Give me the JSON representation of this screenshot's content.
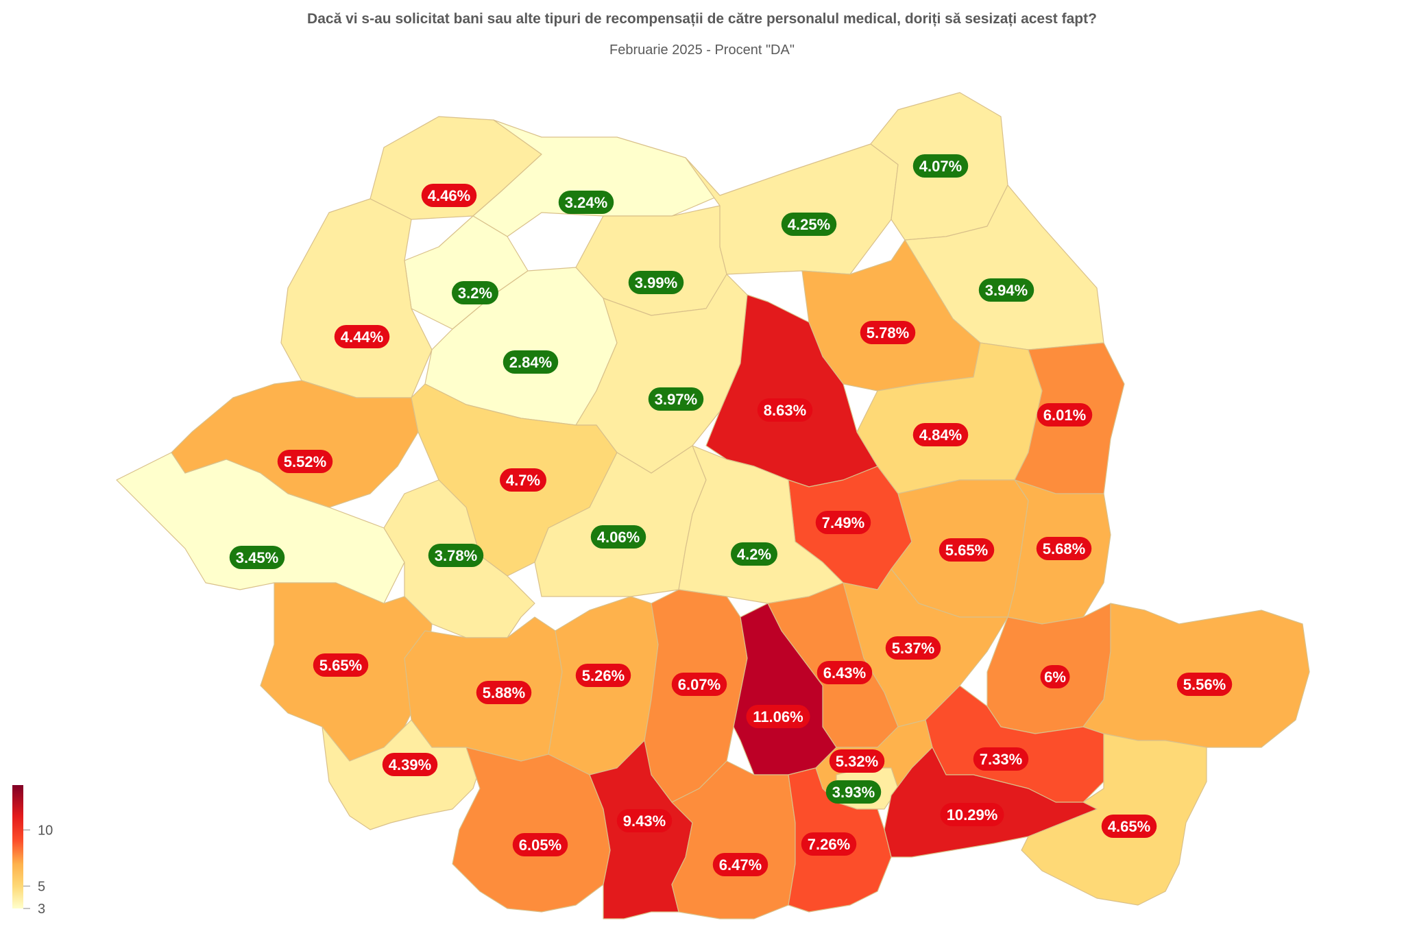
{
  "title": "Dacă vi s-au solicitat bani sau alte tipuri de recompensații de către personalul medical, doriți să sesizați acest fapt?",
  "subtitle": "Februarie 2025 - Procent \"DA\"",
  "colors": {
    "low_label_bg": "#1a7a0e",
    "high_label_bg": "#e50914",
    "scale": [
      "#ffffcc",
      "#ffeda0",
      "#fed976",
      "#feb24c",
      "#fd8d3c",
      "#fc4e2a",
      "#e31a1c",
      "#bd0026",
      "#800026"
    ]
  },
  "legend": {
    "min": 3,
    "max": 14,
    "ticks": [
      {
        "value": 3,
        "label": "3"
      },
      {
        "value": 5,
        "label": "5"
      },
      {
        "value": 10,
        "label": "10"
      }
    ]
  },
  "map_data": {
    "type": "choropleth",
    "unit": "%",
    "threshold_green_below": 4.3,
    "regions": [
      {
        "id": "sm",
        "value": 4.46,
        "label": "4.46%"
      },
      {
        "id": "mm",
        "value": 3.24,
        "label": "3.24%"
      },
      {
        "id": "sv",
        "value": 4.25,
        "label": "4.25%"
      },
      {
        "id": "bt",
        "value": 4.07,
        "label": "4.07%"
      },
      {
        "id": "sj",
        "value": 3.2,
        "label": "3.2%"
      },
      {
        "id": "bn",
        "value": 3.99,
        "label": "3.99%"
      },
      {
        "id": "is",
        "value": 3.94,
        "label": "3.94%"
      },
      {
        "id": "bh",
        "value": 4.44,
        "label": "4.44%"
      },
      {
        "id": "cj",
        "value": 2.84,
        "label": "2.84%"
      },
      {
        "id": "nt",
        "value": 5.78,
        "label": "5.78%"
      },
      {
        "id": "ms",
        "value": 3.97,
        "label": "3.97%"
      },
      {
        "id": "hr",
        "value": 8.63,
        "label": "8.63%"
      },
      {
        "id": "bc",
        "value": 4.84,
        "label": "4.84%"
      },
      {
        "id": "vs",
        "value": 6.01,
        "label": "6.01%"
      },
      {
        "id": "ar",
        "value": 5.52,
        "label": "5.52%"
      },
      {
        "id": "ab",
        "value": 4.7,
        "label": "4.7%"
      },
      {
        "id": "cv",
        "value": 7.49,
        "label": "7.49%"
      },
      {
        "id": "tm",
        "value": 3.45,
        "label": "3.45%"
      },
      {
        "id": "hd",
        "value": 3.78,
        "label": "3.78%"
      },
      {
        "id": "sb",
        "value": 4.06,
        "label": "4.06%"
      },
      {
        "id": "bv",
        "value": 4.2,
        "label": "4.2%"
      },
      {
        "id": "vn",
        "value": 5.65,
        "label": "5.65%"
      },
      {
        "id": "vl",
        "value": 5.68,
        "label": "5.68%"
      },
      {
        "id": "cs",
        "value": 5.65,
        "label": "5.65%"
      },
      {
        "id": "bz",
        "value": 5.37,
        "label": "5.37%"
      },
      {
        "id": "gl",
        "value": 6,
        "label": "6%"
      },
      {
        "id": "tl",
        "value": 5.56,
        "label": "5.56%"
      },
      {
        "id": "gj",
        "value": 5.88,
        "label": "5.88%"
      },
      {
        "id": "vlc",
        "value": 5.26,
        "label": "5.26%"
      },
      {
        "id": "ag",
        "value": 6.07,
        "label": "6.07%"
      },
      {
        "id": "ph",
        "value": 6.43,
        "label": "6.43%"
      },
      {
        "id": "db",
        "value": 11.06,
        "label": "11.06%"
      },
      {
        "id": "mh",
        "value": 4.39,
        "label": "4.39%"
      },
      {
        "id": "if",
        "value": 5.32,
        "label": "5.32%"
      },
      {
        "id": "br",
        "value": 7.33,
        "label": "7.33%"
      },
      {
        "id": "b",
        "value": 3.93,
        "label": "3.93%"
      },
      {
        "id": "il",
        "value": 10.29,
        "label": "10.29%"
      },
      {
        "id": "dj",
        "value": 6.05,
        "label": "6.05%"
      },
      {
        "id": "ot",
        "value": 9.43,
        "label": "9.43%"
      },
      {
        "id": "tr",
        "value": 6.47,
        "label": "6.47%"
      },
      {
        "id": "gr",
        "value": 7.26,
        "label": "7.26%"
      },
      {
        "id": "ct",
        "value": 4.65,
        "label": "4.65%"
      }
    ]
  }
}
